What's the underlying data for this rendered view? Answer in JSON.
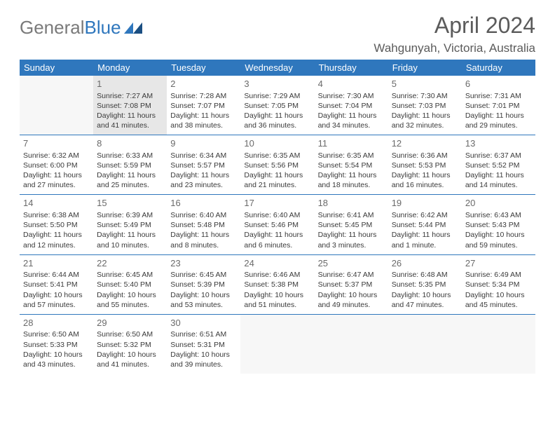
{
  "logo": {
    "text_a": "General",
    "text_b": "Blue"
  },
  "header": {
    "title": "April 2024",
    "location": "Wahgunyah, Victoria, Australia"
  },
  "colors": {
    "header_bg": "#2f77bd",
    "header_fg": "#ffffff",
    "page_bg": "#ffffff",
    "text": "#3a3a3a",
    "daynum": "#6a6a6a",
    "today_bg": "#e7e7e7",
    "empty_bg": "#f7f7f7",
    "rule": "#2f77bd"
  },
  "weekdays": [
    "Sunday",
    "Monday",
    "Tuesday",
    "Wednesday",
    "Thursday",
    "Friday",
    "Saturday"
  ],
  "weeks": [
    [
      {
        "day": "",
        "sunrise": "",
        "sunset": "",
        "daylight": ""
      },
      {
        "day": "1",
        "sunrise": "Sunrise: 7:27 AM",
        "sunset": "Sunset: 7:08 PM",
        "daylight": "Daylight: 11 hours and 41 minutes.",
        "today": true
      },
      {
        "day": "2",
        "sunrise": "Sunrise: 7:28 AM",
        "sunset": "Sunset: 7:07 PM",
        "daylight": "Daylight: 11 hours and 38 minutes."
      },
      {
        "day": "3",
        "sunrise": "Sunrise: 7:29 AM",
        "sunset": "Sunset: 7:05 PM",
        "daylight": "Daylight: 11 hours and 36 minutes."
      },
      {
        "day": "4",
        "sunrise": "Sunrise: 7:30 AM",
        "sunset": "Sunset: 7:04 PM",
        "daylight": "Daylight: 11 hours and 34 minutes."
      },
      {
        "day": "5",
        "sunrise": "Sunrise: 7:30 AM",
        "sunset": "Sunset: 7:03 PM",
        "daylight": "Daylight: 11 hours and 32 minutes."
      },
      {
        "day": "6",
        "sunrise": "Sunrise: 7:31 AM",
        "sunset": "Sunset: 7:01 PM",
        "daylight": "Daylight: 11 hours and 29 minutes."
      }
    ],
    [
      {
        "day": "7",
        "sunrise": "Sunrise: 6:32 AM",
        "sunset": "Sunset: 6:00 PM",
        "daylight": "Daylight: 11 hours and 27 minutes."
      },
      {
        "day": "8",
        "sunrise": "Sunrise: 6:33 AM",
        "sunset": "Sunset: 5:59 PM",
        "daylight": "Daylight: 11 hours and 25 minutes."
      },
      {
        "day": "9",
        "sunrise": "Sunrise: 6:34 AM",
        "sunset": "Sunset: 5:57 PM",
        "daylight": "Daylight: 11 hours and 23 minutes."
      },
      {
        "day": "10",
        "sunrise": "Sunrise: 6:35 AM",
        "sunset": "Sunset: 5:56 PM",
        "daylight": "Daylight: 11 hours and 21 minutes."
      },
      {
        "day": "11",
        "sunrise": "Sunrise: 6:35 AM",
        "sunset": "Sunset: 5:54 PM",
        "daylight": "Daylight: 11 hours and 18 minutes."
      },
      {
        "day": "12",
        "sunrise": "Sunrise: 6:36 AM",
        "sunset": "Sunset: 5:53 PM",
        "daylight": "Daylight: 11 hours and 16 minutes."
      },
      {
        "day": "13",
        "sunrise": "Sunrise: 6:37 AM",
        "sunset": "Sunset: 5:52 PM",
        "daylight": "Daylight: 11 hours and 14 minutes."
      }
    ],
    [
      {
        "day": "14",
        "sunrise": "Sunrise: 6:38 AM",
        "sunset": "Sunset: 5:50 PM",
        "daylight": "Daylight: 11 hours and 12 minutes."
      },
      {
        "day": "15",
        "sunrise": "Sunrise: 6:39 AM",
        "sunset": "Sunset: 5:49 PM",
        "daylight": "Daylight: 11 hours and 10 minutes."
      },
      {
        "day": "16",
        "sunrise": "Sunrise: 6:40 AM",
        "sunset": "Sunset: 5:48 PM",
        "daylight": "Daylight: 11 hours and 8 minutes."
      },
      {
        "day": "17",
        "sunrise": "Sunrise: 6:40 AM",
        "sunset": "Sunset: 5:46 PM",
        "daylight": "Daylight: 11 hours and 6 minutes."
      },
      {
        "day": "18",
        "sunrise": "Sunrise: 6:41 AM",
        "sunset": "Sunset: 5:45 PM",
        "daylight": "Daylight: 11 hours and 3 minutes."
      },
      {
        "day": "19",
        "sunrise": "Sunrise: 6:42 AM",
        "sunset": "Sunset: 5:44 PM",
        "daylight": "Daylight: 11 hours and 1 minute."
      },
      {
        "day": "20",
        "sunrise": "Sunrise: 6:43 AM",
        "sunset": "Sunset: 5:43 PM",
        "daylight": "Daylight: 10 hours and 59 minutes."
      }
    ],
    [
      {
        "day": "21",
        "sunrise": "Sunrise: 6:44 AM",
        "sunset": "Sunset: 5:41 PM",
        "daylight": "Daylight: 10 hours and 57 minutes."
      },
      {
        "day": "22",
        "sunrise": "Sunrise: 6:45 AM",
        "sunset": "Sunset: 5:40 PM",
        "daylight": "Daylight: 10 hours and 55 minutes."
      },
      {
        "day": "23",
        "sunrise": "Sunrise: 6:45 AM",
        "sunset": "Sunset: 5:39 PM",
        "daylight": "Daylight: 10 hours and 53 minutes."
      },
      {
        "day": "24",
        "sunrise": "Sunrise: 6:46 AM",
        "sunset": "Sunset: 5:38 PM",
        "daylight": "Daylight: 10 hours and 51 minutes."
      },
      {
        "day": "25",
        "sunrise": "Sunrise: 6:47 AM",
        "sunset": "Sunset: 5:37 PM",
        "daylight": "Daylight: 10 hours and 49 minutes."
      },
      {
        "day": "26",
        "sunrise": "Sunrise: 6:48 AM",
        "sunset": "Sunset: 5:35 PM",
        "daylight": "Daylight: 10 hours and 47 minutes."
      },
      {
        "day": "27",
        "sunrise": "Sunrise: 6:49 AM",
        "sunset": "Sunset: 5:34 PM",
        "daylight": "Daylight: 10 hours and 45 minutes."
      }
    ],
    [
      {
        "day": "28",
        "sunrise": "Sunrise: 6:50 AM",
        "sunset": "Sunset: 5:33 PM",
        "daylight": "Daylight: 10 hours and 43 minutes."
      },
      {
        "day": "29",
        "sunrise": "Sunrise: 6:50 AM",
        "sunset": "Sunset: 5:32 PM",
        "daylight": "Daylight: 10 hours and 41 minutes."
      },
      {
        "day": "30",
        "sunrise": "Sunrise: 6:51 AM",
        "sunset": "Sunset: 5:31 PM",
        "daylight": "Daylight: 10 hours and 39 minutes."
      },
      {
        "day": "",
        "sunrise": "",
        "sunset": "",
        "daylight": ""
      },
      {
        "day": "",
        "sunrise": "",
        "sunset": "",
        "daylight": ""
      },
      {
        "day": "",
        "sunrise": "",
        "sunset": "",
        "daylight": ""
      },
      {
        "day": "",
        "sunrise": "",
        "sunset": "",
        "daylight": ""
      }
    ]
  ]
}
